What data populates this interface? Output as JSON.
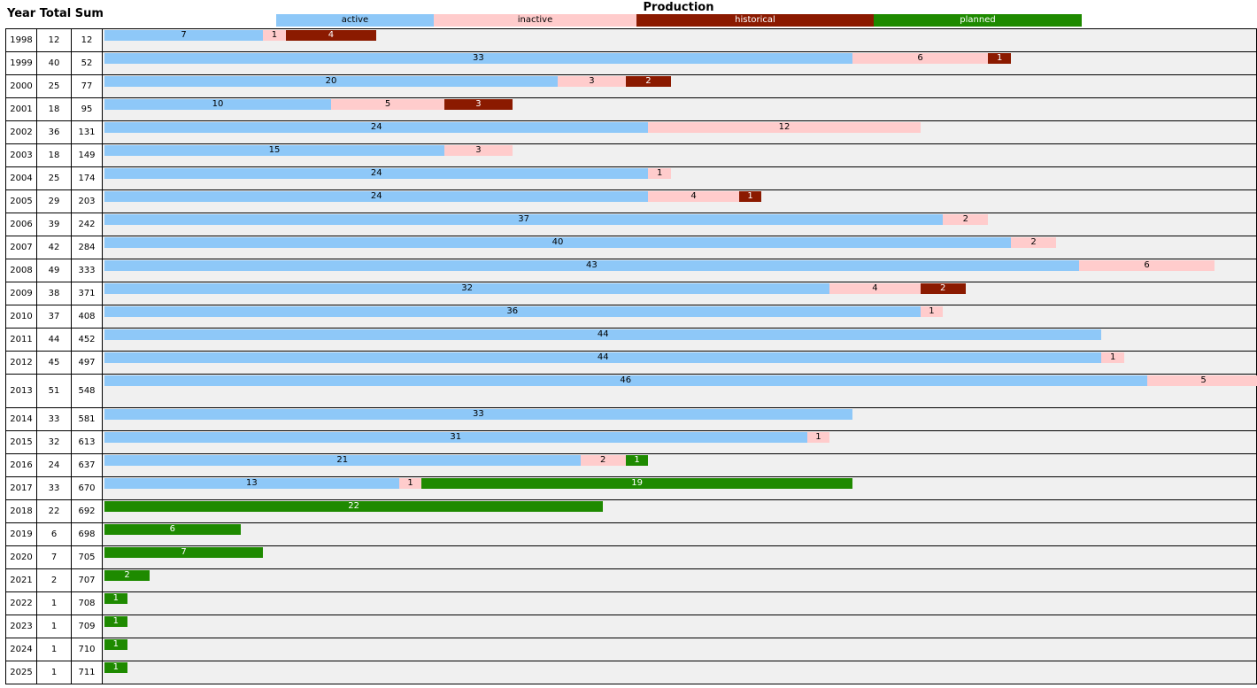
{
  "header": {
    "columns": "Year Total Sum",
    "title": "Production"
  },
  "legend": [
    {
      "key": "active",
      "label": "active",
      "color": "#8ec8f8"
    },
    {
      "key": "inactive",
      "label": "inactive",
      "color": "#ffcccc"
    },
    {
      "key": "historical",
      "label": "historical",
      "color": "#8b1a00"
    },
    {
      "key": "planned",
      "label": "planned",
      "color": "#1e8a00"
    }
  ],
  "chart_data": {
    "type": "bar",
    "title": "Production",
    "stacked": true,
    "orientation": "horizontal",
    "series_order": [
      "active",
      "inactive",
      "historical",
      "planned"
    ],
    "rows": [
      {
        "year": "1998",
        "total": "12",
        "sum": "12",
        "active": 7,
        "inactive": 1,
        "historical": 4,
        "planned": 0
      },
      {
        "year": "1999",
        "total": "40",
        "sum": "52",
        "active": 33,
        "inactive": 6,
        "historical": 1,
        "planned": 0
      },
      {
        "year": "2000",
        "total": "25",
        "sum": "77",
        "active": 20,
        "inactive": 3,
        "historical": 2,
        "planned": 0
      },
      {
        "year": "2001",
        "total": "18",
        "sum": "95",
        "active": 10,
        "inactive": 5,
        "historical": 3,
        "planned": 0
      },
      {
        "year": "2002",
        "total": "36",
        "sum": "131",
        "active": 24,
        "inactive": 12,
        "historical": 0,
        "planned": 0
      },
      {
        "year": "2003",
        "total": "18",
        "sum": "149",
        "active": 15,
        "inactive": 3,
        "historical": 0,
        "planned": 0
      },
      {
        "year": "2004",
        "total": "25",
        "sum": "174",
        "active": 24,
        "inactive": 1,
        "historical": 0,
        "planned": 0
      },
      {
        "year": "2005",
        "total": "29",
        "sum": "203",
        "active": 24,
        "inactive": 4,
        "historical": 1,
        "planned": 0
      },
      {
        "year": "2006",
        "total": "39",
        "sum": "242",
        "active": 37,
        "inactive": 2,
        "historical": 0,
        "planned": 0
      },
      {
        "year": "2007",
        "total": "42",
        "sum": "284",
        "active": 40,
        "inactive": 2,
        "historical": 0,
        "planned": 0
      },
      {
        "year": "2008",
        "total": "49",
        "sum": "333",
        "active": 43,
        "inactive": 6,
        "historical": 0,
        "planned": 0
      },
      {
        "year": "2009",
        "total": "38",
        "sum": "371",
        "active": 32,
        "inactive": 4,
        "historical": 2,
        "planned": 0
      },
      {
        "year": "2010",
        "total": "37",
        "sum": "408",
        "active": 36,
        "inactive": 1,
        "historical": 0,
        "planned": 0
      },
      {
        "year": "2011",
        "total": "44",
        "sum": "452",
        "active": 44,
        "inactive": 0,
        "historical": 0,
        "planned": 0
      },
      {
        "year": "2012",
        "total": "45",
        "sum": "497",
        "active": 44,
        "inactive": 1,
        "historical": 0,
        "planned": 0
      },
      {
        "year": "2013",
        "total": "51",
        "sum": "548",
        "active": 46,
        "inactive": 5,
        "historical": 0,
        "planned": 0
      },
      {
        "year": "2014",
        "total": "33",
        "sum": "581",
        "active": 33,
        "inactive": 0,
        "historical": 0,
        "planned": 0
      },
      {
        "year": "2015",
        "total": "32",
        "sum": "613",
        "active": 31,
        "inactive": 1,
        "historical": 0,
        "planned": 0
      },
      {
        "year": "2016",
        "total": "24",
        "sum": "637",
        "active": 21,
        "inactive": 2,
        "historical": 0,
        "planned": 1
      },
      {
        "year": "2017",
        "total": "33",
        "sum": "670",
        "active": 13,
        "inactive": 1,
        "historical": 0,
        "planned": 19
      },
      {
        "year": "2018",
        "total": "22",
        "sum": "692",
        "active": 0,
        "inactive": 0,
        "historical": 0,
        "planned": 22
      },
      {
        "year": "2019",
        "total": "6",
        "sum": "698",
        "active": 0,
        "inactive": 0,
        "historical": 0,
        "planned": 6
      },
      {
        "year": "2020",
        "total": "7",
        "sum": "705",
        "active": 0,
        "inactive": 0,
        "historical": 0,
        "planned": 7
      },
      {
        "year": "2021",
        "total": "2",
        "sum": "707",
        "active": 0,
        "inactive": 0,
        "historical": 0,
        "planned": 2
      },
      {
        "year": "2022",
        "total": "1",
        "sum": "708",
        "active": 0,
        "inactive": 0,
        "historical": 0,
        "planned": 1
      },
      {
        "year": "2023",
        "total": "1",
        "sum": "709",
        "active": 0,
        "inactive": 0,
        "historical": 0,
        "planned": 1
      },
      {
        "year": "2024",
        "total": "1",
        "sum": "710",
        "active": 0,
        "inactive": 0,
        "historical": 0,
        "planned": 1
      },
      {
        "year": "2025",
        "total": "1",
        "sum": "711",
        "active": 0,
        "inactive": 0,
        "historical": 0,
        "planned": 1
      }
    ]
  }
}
